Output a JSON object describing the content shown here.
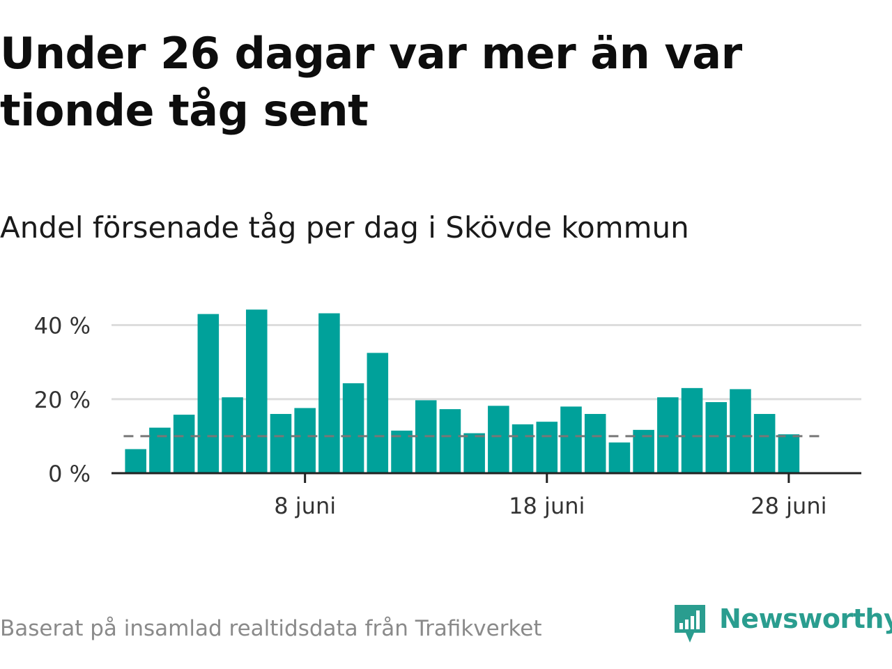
{
  "header": {
    "title": "Under 26 dagar var mer än var tionde tåg sent",
    "subtitle": "Andel försenade tåg per dag i Skövde kommun"
  },
  "footer": {
    "source": "Baserat på insamlad realtidsdata från Trafikverket",
    "brand": "Newsworthy",
    "brand_icon": "bar-chart-pin-icon"
  },
  "colors": {
    "bar": "#00a19a",
    "reference_line": "#777777",
    "grid": "#dddddd",
    "axis": "#222222",
    "brand": "#2a9d8f"
  },
  "chart_data": {
    "type": "bar",
    "x_unit": "day of June",
    "x": [
      1,
      2,
      3,
      4,
      5,
      6,
      7,
      8,
      9,
      10,
      11,
      12,
      13,
      14,
      15,
      16,
      17,
      18,
      19,
      20,
      21,
      22,
      23,
      24,
      25,
      26,
      27,
      28
    ],
    "values": [
      6.5,
      12.3,
      15.8,
      43.0,
      20.5,
      44.2,
      16.0,
      17.6,
      43.2,
      24.3,
      32.5,
      11.5,
      19.7,
      17.3,
      10.8,
      18.2,
      13.2,
      13.9,
      18.0,
      16.0,
      8.3,
      11.7,
      20.5,
      23.0,
      19.2,
      22.7,
      16.0,
      10.5
    ],
    "reference_line": 10,
    "reference_line_style": "dashed",
    "ylim": [
      0,
      45
    ],
    "xlim": [
      0,
      31
    ],
    "y_ticks": [
      {
        "value": 0,
        "label": "0 %"
      },
      {
        "value": 20,
        "label": "20 %"
      },
      {
        "value": 40,
        "label": "40 %"
      }
    ],
    "x_ticks": [
      {
        "value": 8,
        "label": "8 juni"
      },
      {
        "value": 18,
        "label": "18 juni"
      },
      {
        "value": 28,
        "label": "28 juni"
      }
    ],
    "grid": true
  }
}
